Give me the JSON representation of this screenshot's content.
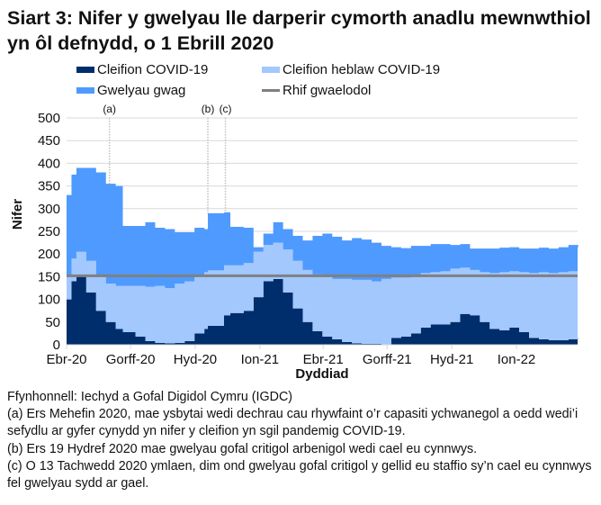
{
  "title": "Siart 3: Nifer y gwelyau lle darperir cymorth anadlu mewnwthiol yn ôl defnydd, o 1 Ebrill 2020",
  "legend": [
    {
      "label": "Cleifion COVID-19",
      "color": "#002D6B"
    },
    {
      "label": "Cleifion heblaw COVID-19",
      "color": "#A2C8FE"
    },
    {
      "label": "Gwelyau gwag",
      "color": "#4F9AFE"
    },
    {
      "label": "Rhif gwaelodol",
      "color": "#808080"
    }
  ],
  "chart_data": {
    "type": "area",
    "stacked": true,
    "xlabel": "Dyddiad",
    "ylabel": "Nifer",
    "ylim": [
      0,
      500
    ],
    "yticks": [
      "0",
      "50",
      "100",
      "150",
      "200",
      "250",
      "300",
      "350",
      "400",
      "450",
      "500"
    ],
    "xticks": [
      {
        "label": "Ebr-20",
        "date": "2020-04-01"
      },
      {
        "label": "Gorff-20",
        "date": "2020-07-01"
      },
      {
        "label": "Hyd-20",
        "date": "2020-10-01"
      },
      {
        "label": "Ion-21",
        "date": "2021-01-01"
      },
      {
        "label": "Ebr-21",
        "date": "2021-04-01"
      },
      {
        "label": "Gorff-21",
        "date": "2021-07-01"
      },
      {
        "label": "Hyd-21",
        "date": "2021-10-01"
      },
      {
        "label": "Ion-22",
        "date": "2022-01-01"
      }
    ],
    "grid": true,
    "legend_position": "top",
    "baseline": {
      "name": "Rhif gwaelodol",
      "value": 152
    },
    "annotations": [
      {
        "label": "(a)",
        "date": "2020-06-01"
      },
      {
        "label": "(b)",
        "date": "2020-10-19"
      },
      {
        "label": "(c)",
        "date": "2020-11-13"
      }
    ],
    "dates": [
      "2020-04-01",
      "2020-04-08",
      "2020-04-15",
      "2020-04-29",
      "2020-05-13",
      "2020-05-27",
      "2020-06-10",
      "2020-06-20",
      "2020-07-08",
      "2020-07-22",
      "2020-08-05",
      "2020-08-19",
      "2020-09-02",
      "2020-09-16",
      "2020-09-30",
      "2020-10-14",
      "2020-10-19",
      "2020-11-11",
      "2020-11-20",
      "2020-12-09",
      "2020-12-23",
      "2021-01-06",
      "2021-01-20",
      "2021-02-03",
      "2021-02-17",
      "2021-03-03",
      "2021-03-17",
      "2021-03-31",
      "2021-04-14",
      "2021-04-28",
      "2021-05-12",
      "2021-05-26",
      "2021-06-09",
      "2021-06-23",
      "2021-07-07",
      "2021-07-21",
      "2021-08-04",
      "2021-08-18",
      "2021-09-01",
      "2021-09-15",
      "2021-09-29",
      "2021-10-13",
      "2021-10-27",
      "2021-11-10",
      "2021-11-24",
      "2021-12-08",
      "2021-12-22",
      "2022-01-05",
      "2022-01-19",
      "2022-02-02",
      "2022-02-16",
      "2022-03-02",
      "2022-03-16",
      "2022-03-30"
    ],
    "series": [
      {
        "name": "Cleifion COVID-19",
        "values": [
          100,
          140,
          150,
          115,
          75,
          50,
          35,
          28,
          18,
          8,
          4,
          3,
          4,
          8,
          25,
          35,
          42,
          65,
          70,
          75,
          105,
          140,
          145,
          115,
          80,
          50,
          30,
          18,
          12,
          6,
          3,
          2,
          2,
          1,
          15,
          18,
          25,
          38,
          45,
          45,
          50,
          68,
          65,
          50,
          35,
          32,
          38,
          28,
          15,
          12,
          10,
          10,
          12,
          15
        ]
      },
      {
        "name": "Cleifion heblaw COVID-19",
        "values": [
          50,
          50,
          55,
          70,
          75,
          85,
          95,
          102,
          112,
          120,
          126,
          122,
          131,
          132,
          125,
          125,
          122,
          110,
          105,
          105,
          100,
          80,
          80,
          95,
          105,
          115,
          125,
          132,
          133,
          139,
          140,
          141,
          138,
          144,
          133,
          130,
          127,
          120,
          115,
          117,
          118,
          102,
          100,
          110,
          123,
          128,
          124,
          132,
          143,
          148,
          148,
          150,
          150,
          147
        ]
      },
      {
        "name": "Gwelyau gwag",
        "values": [
          180,
          185,
          185,
          205,
          230,
          220,
          220,
          132,
          132,
          142,
          128,
          130,
          113,
          108,
          108,
          95,
          126,
          117,
          85,
          78,
          10,
          25,
          45,
          45,
          55,
          65,
          85,
          95,
          93,
          85,
          92,
          89,
          85,
          73,
          67,
          65,
          66,
          60,
          62,
          60,
          52,
          52,
          47,
          52,
          54,
          54,
          53,
          52,
          54,
          54,
          54,
          55,
          58,
          53
        ]
      }
    ]
  },
  "notes": [
    "Ffynhonnell: Iechyd a Gofal Digidol Cymru (IGDC)",
    "(a) Ers Mehefin 2020, mae ysbytai wedi dechrau cau rhywfaint o’r capasiti ychwanegol a oedd wedi’i sefydlu ar gyfer cynydd yn nifer y cleifion yn sgil pandemig COVID-19.",
    "(b) Ers 19 Hydref 2020 mae gwelyau gofal critigol arbenigol wedi cael eu cynnwys.",
    "(c) O 13 Tachwedd 2020 ymlaen, dim ond gwelyau gofal critigol y gellid eu staffio sy’n cael eu cynnwys fel gwelyau sydd ar gael."
  ]
}
